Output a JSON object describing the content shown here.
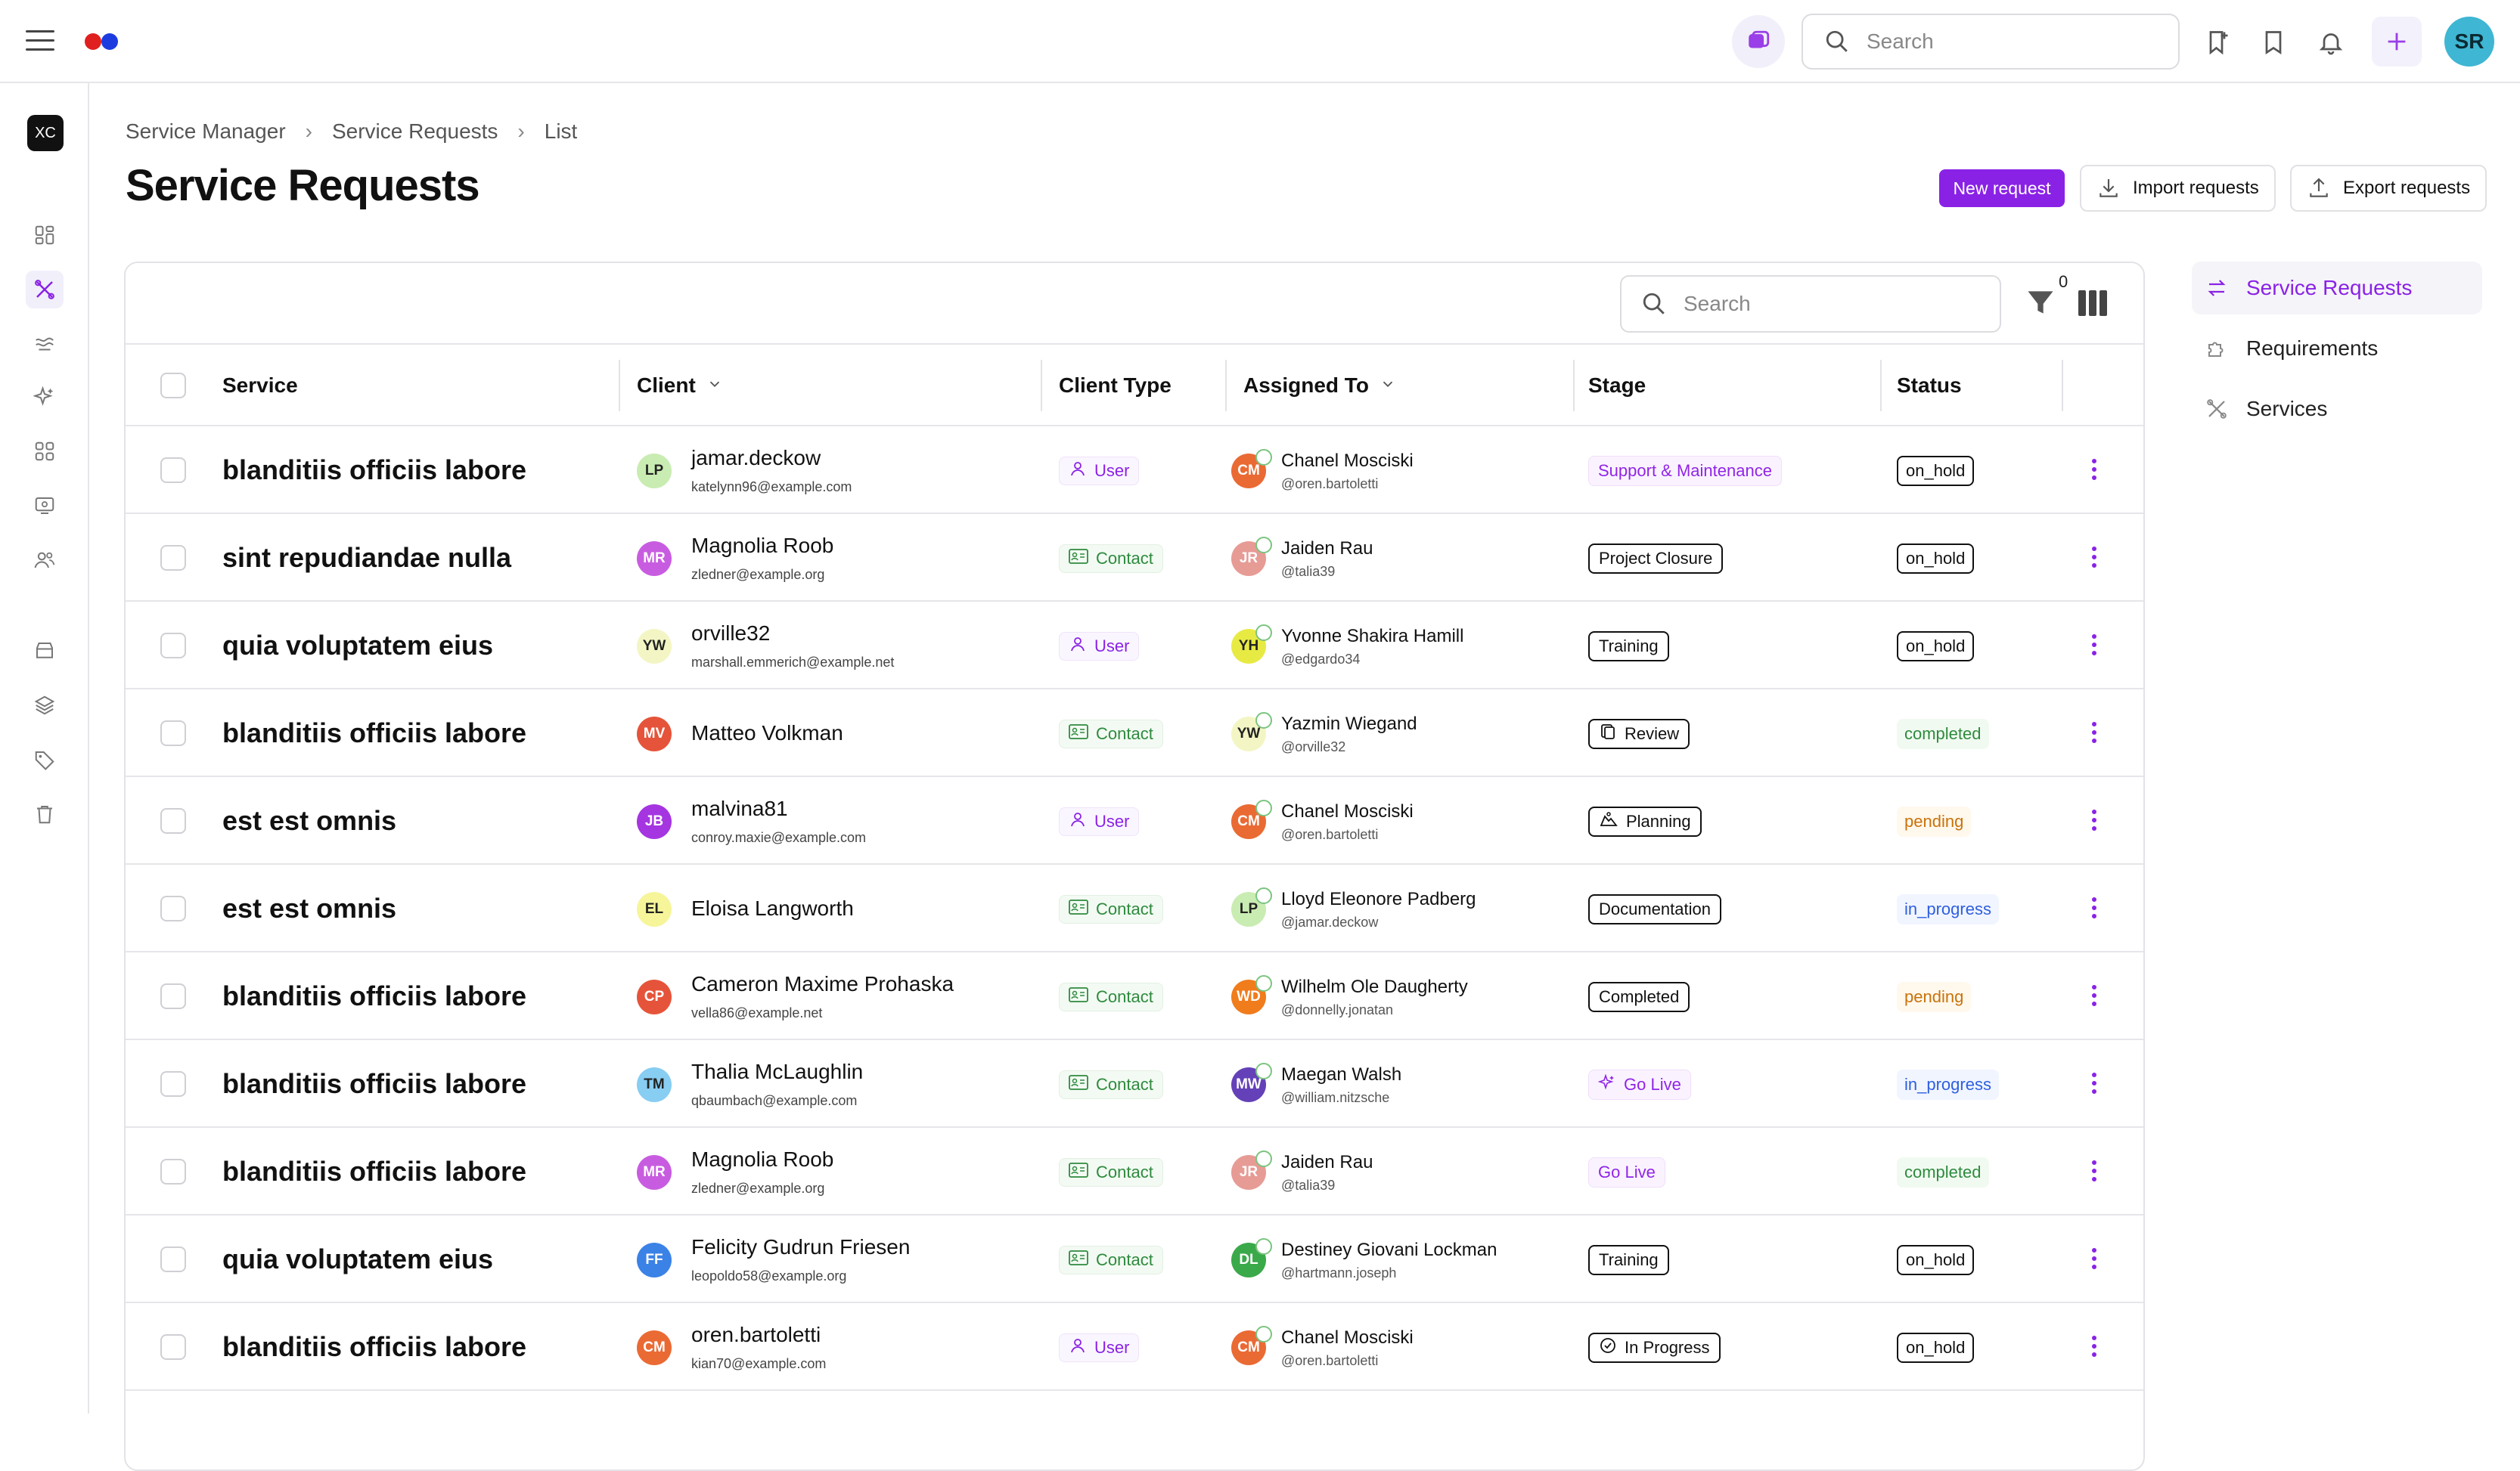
{
  "topbar": {
    "search_placeholder": "Search",
    "user_initials": "SR",
    "brand_colors": [
      "#e01f1f",
      "#1d3ce0"
    ]
  },
  "sidebar": {
    "workspace_initials": "XC",
    "icons": [
      "dashboard-icon",
      "tools-icon",
      "stream-icon",
      "sparkle-icon",
      "grid-icon",
      "monitor-icon",
      "users-icon",
      "archive-icon",
      "layers-icon",
      "tag-icon",
      "trash-icon"
    ]
  },
  "breadcrumbs": [
    "Service Manager",
    "Service Requests",
    "List"
  ],
  "page": {
    "title": "Service Requests",
    "new_request": "New request",
    "import_requests": "Import requests",
    "export_requests": "Export requests"
  },
  "table": {
    "search_placeholder": "Search",
    "filter_count": "0",
    "columns": [
      "Service",
      "Client",
      "Client Type",
      "Assigned To",
      "Stage",
      "Status"
    ],
    "rows": [
      {
        "service": "blanditiis officiis labore",
        "client_initials": "LP",
        "client_name": "jamar.deckow",
        "client_email": "katelynn96@example.com",
        "client_type": "User",
        "assignee_initials": "CM",
        "assignee_name": "Chanel Mosciski",
        "assignee_handle": "@oren.bartoletti",
        "stage": "Support & Maintenance",
        "stage_style": "purp",
        "stage_icon": "",
        "status": "on_hold"
      },
      {
        "service": "sint repudiandae nulla",
        "client_initials": "MR",
        "client_name": "Magnolia Roob",
        "client_email": "zledner@example.org",
        "client_type": "Contact",
        "assignee_initials": "JR",
        "assignee_name": "Jaiden Rau",
        "assignee_handle": "@talia39",
        "stage": "Project Closure",
        "stage_style": "outl",
        "stage_icon": "",
        "status": "on_hold"
      },
      {
        "service": "quia voluptatem eius",
        "client_initials": "YW",
        "client_name": "orville32",
        "client_email": "marshall.emmerich@example.net",
        "client_type": "User",
        "assignee_initials": "YH",
        "assignee_name": "Yvonne Shakira Hamill",
        "assignee_handle": "@edgardo34",
        "stage": "Training",
        "stage_style": "outl",
        "stage_icon": "",
        "status": "on_hold"
      },
      {
        "service": "blanditiis officiis labore",
        "client_initials": "MV",
        "client_name": "Matteo Volkman",
        "client_email": "",
        "client_type": "Contact",
        "assignee_initials": "YW",
        "assignee_name": "Yazmin Wiegand",
        "assignee_handle": "@orville32",
        "stage": "Review",
        "stage_style": "outl",
        "stage_icon": "review",
        "status": "completed"
      },
      {
        "service": "est est omnis",
        "client_initials": "JB",
        "client_name": "malvina81",
        "client_email": "conroy.maxie@example.com",
        "client_type": "User",
        "assignee_initials": "CM",
        "assignee_name": "Chanel Mosciski",
        "assignee_handle": "@oren.bartoletti",
        "stage": "Planning",
        "stage_style": "outl",
        "stage_icon": "planning",
        "status": "pending"
      },
      {
        "service": "est est omnis",
        "client_initials": "EL",
        "client_name": "Eloisa Langworth",
        "client_email": "",
        "client_type": "Contact",
        "assignee_initials": "LP",
        "assignee_name": "Lloyd Eleonore Padberg",
        "assignee_handle": "@jamar.deckow",
        "stage": "Documentation",
        "stage_style": "outl",
        "stage_icon": "",
        "status": "in_progress"
      },
      {
        "service": "blanditiis officiis labore",
        "client_initials": "CP",
        "client_name": "Cameron Maxime Prohaska",
        "client_email": "vella86@example.net",
        "client_type": "Contact",
        "assignee_initials": "WD",
        "assignee_name": "Wilhelm Ole Daugherty",
        "assignee_handle": "@donnelly.jonatan",
        "stage": "Completed",
        "stage_style": "outl",
        "stage_icon": "",
        "status": "pending"
      },
      {
        "service": "blanditiis officiis labore",
        "client_initials": "TM",
        "client_name": "Thalia McLaughlin",
        "client_email": "qbaumbach@example.com",
        "client_type": "Contact",
        "assignee_initials": "MW",
        "assignee_name": "Maegan Walsh",
        "assignee_handle": "@william.nitzsche",
        "stage": "Go Live",
        "stage_style": "purp",
        "stage_icon": "sparkle",
        "status": "in_progress"
      },
      {
        "service": "blanditiis officiis labore",
        "client_initials": "MR",
        "client_name": "Magnolia Roob",
        "client_email": "zledner@example.org",
        "client_type": "Contact",
        "assignee_initials": "JR",
        "assignee_name": "Jaiden Rau",
        "assignee_handle": "@talia39",
        "stage": "Go Live",
        "stage_style": "purp",
        "stage_icon": "",
        "status": "completed"
      },
      {
        "service": "quia voluptatem eius",
        "client_initials": "FF",
        "client_name": "Felicity Gudrun Friesen",
        "client_email": "leopoldo58@example.org",
        "client_type": "Contact",
        "assignee_initials": "DL",
        "assignee_name": "Destiney Giovani Lockman",
        "assignee_handle": "@hartmann.joseph",
        "stage": "Training",
        "stage_style": "outl",
        "stage_icon": "",
        "status": "on_hold"
      },
      {
        "service": "blanditiis officiis labore",
        "client_initials": "CM",
        "client_name": "oren.bartoletti",
        "client_email": "kian70@example.com",
        "client_type": "User",
        "assignee_initials": "CM",
        "assignee_name": "Chanel Mosciski",
        "assignee_handle": "@oren.bartoletti",
        "stage": "In Progress",
        "stage_style": "outl",
        "stage_icon": "check",
        "status": "on_hold"
      }
    ]
  },
  "right_nav": [
    {
      "label": "Service Requests",
      "icon": "swap-arrows-icon",
      "active": true
    },
    {
      "label": "Requirements",
      "icon": "puzzle-icon",
      "active": false
    },
    {
      "label": "Services",
      "icon": "tools-icon",
      "active": false
    }
  ],
  "avatar_colors": {
    "LP": "#c9ecb2",
    "MR": "#c85ce0",
    "YW": "#f3f6c4",
    "MV": "#e5543a",
    "JB": "#a535e0",
    "EL": "#f6f59a",
    "CP": "#e5543a",
    "TM": "#88cdf2",
    "FF": "#3b82e6",
    "CM": "#ea6a34",
    "JR": "#e79b95",
    "YH": "#e8ea44",
    "WD": "#f07c1c",
    "MW": "#6441b8",
    "DL": "#3aa94a"
  }
}
